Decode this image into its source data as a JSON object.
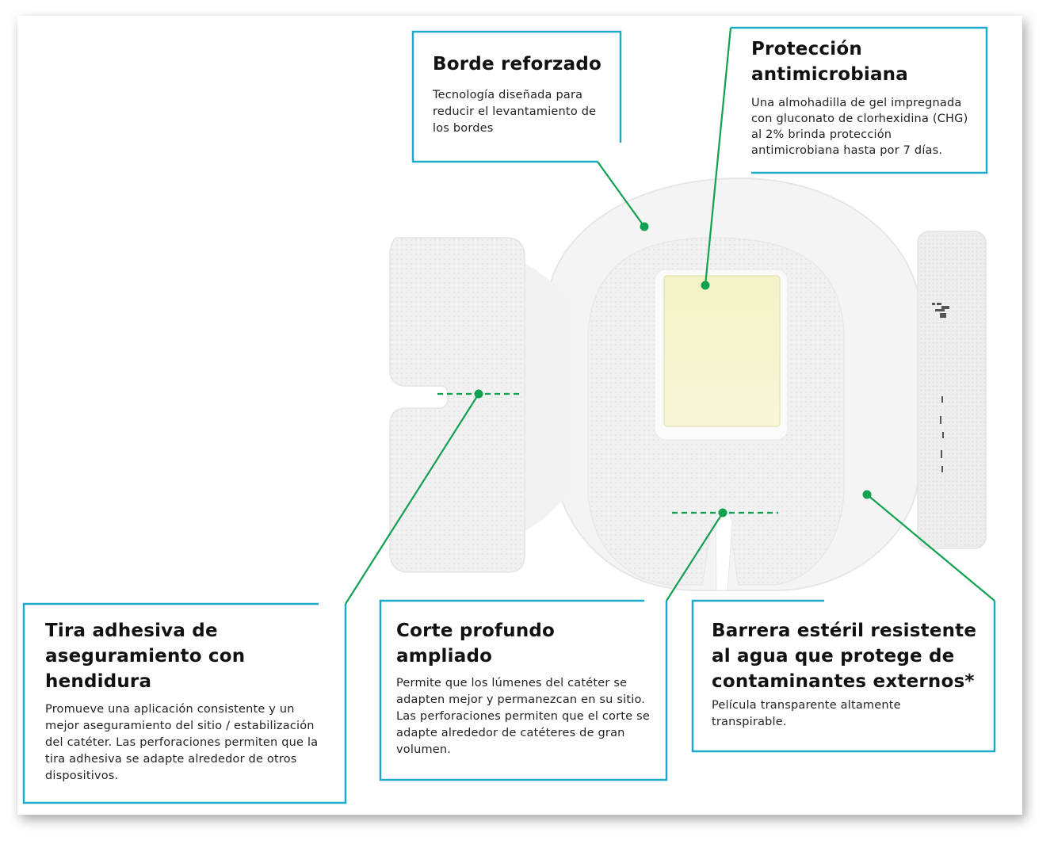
{
  "callouts": {
    "border": {
      "title": "Borde reforzado",
      "desc": "Tecnología diseñada para reducir el levantamiento de los bordes"
    },
    "antimicrobial": {
      "title": "Protección antimicrobiana",
      "desc": "Una almohadilla de gel impregnada con gluconato de clorhexidina (CHG) al 2% brinda protección antimicrobiana hasta por 7 días."
    },
    "strip": {
      "title": "Tira adhesiva de aseguramiento con hendidura",
      "desc": "Promueve una aplicación consistente y un mejor aseguramiento del sitio / estabilización del catéter. Las perforaciones permiten que la tira adhesiva se adapte alrededor de otros dispositivos."
    },
    "cut": {
      "title": "Corte profundo ampliado",
      "desc": "Permite que los lúmenes del catéter se adapten mejor y permanezcan en su sitio. Las perforaciones permiten que el corte se adapte alrededor de catéteres de gran volumen."
    },
    "barrier": {
      "title": "Barrera estéril resistente al agua que protege de contaminantes externos*",
      "desc": "Película transparente altamente transpirable."
    }
  },
  "colors": {
    "callout_border": "#1fa9c9",
    "leader_line": "#12a150",
    "gel_pad": "#f3f2c8"
  }
}
